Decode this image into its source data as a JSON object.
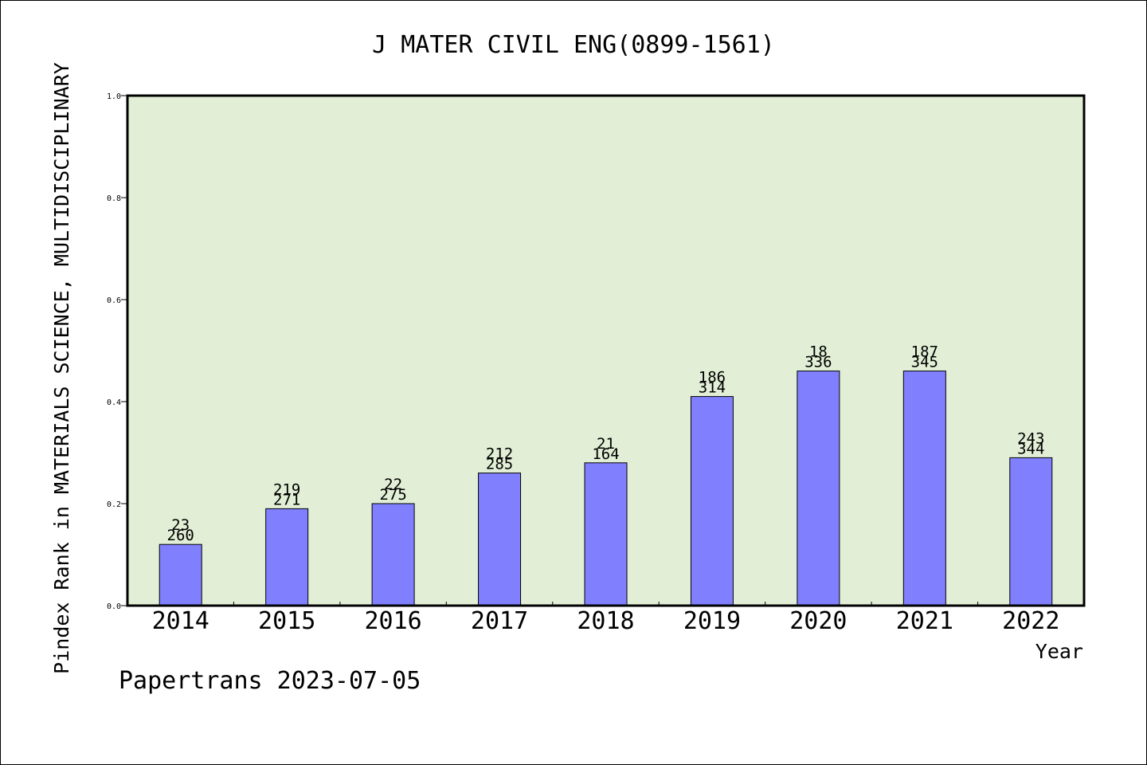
{
  "chart_data": {
    "type": "bar",
    "title": "J MATER CIVIL ENG(0899-1561)",
    "xlabel": "Year",
    "ylabel": "Pindex Rank in MATERIALS SCIENCE, MULTIDISCIPLINARY",
    "ylim": [
      0,
      1.0
    ],
    "yticks": [
      "0.0",
      "0.2",
      "0.4",
      "0.6",
      "0.8",
      "1.0"
    ],
    "grid": false,
    "categories": [
      "2014",
      "2015",
      "2016",
      "2017",
      "2018",
      "2019",
      "2020",
      "2021",
      "2022"
    ],
    "values": [
      0.12,
      0.19,
      0.2,
      0.26,
      0.28,
      0.41,
      0.46,
      0.46,
      0.29
    ],
    "labels_top": [
      "23",
      "219",
      "22",
      "212",
      "21",
      "186",
      "18",
      "187",
      "243"
    ],
    "labels_bottom": [
      "260",
      "271",
      "275",
      "285",
      "164",
      "314",
      "336",
      "345",
      "344"
    ],
    "footer": "Papertrans 2023-07-05",
    "colors": {
      "plot_background": "#e2efd6",
      "bar_fill": "#8080ff",
      "bar_stroke": "#000000"
    }
  }
}
